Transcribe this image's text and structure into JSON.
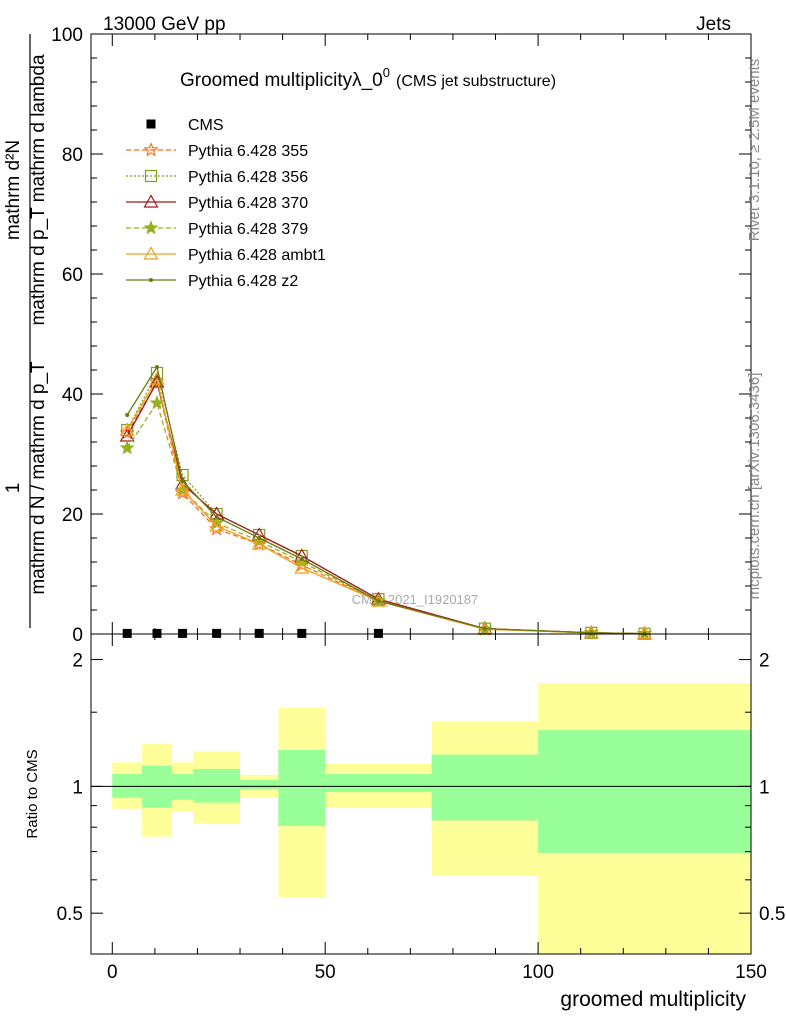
{
  "header": {
    "left": "13000 GeV pp",
    "right": "Jets"
  },
  "side_text": {
    "rivet": "Rivet 3.1.10, ≥ 2.5M events",
    "mcplots": "mcplots.cern.ch [arXiv:1306.3436]"
  },
  "watermark": "CMS_2021_I1920187",
  "chart_data": [
    {
      "type": "line",
      "title_main": "Groomed multiplicityλ_0",
      "title_sup": "0",
      "title_sub": "(CMS jet substructure)",
      "ylabel_top": "1",
      "ylabel_upper": "mathrm d²N",
      "ylabel_upper2": "mathrm d p_T mathrm d lambda",
      "ylabel_lower": "mathrm d N / mathrm d p_T",
      "xlabel": "groomed multiplicity",
      "xlim": [
        -5,
        150
      ],
      "ylim": [
        0,
        100
      ],
      "yticks": [
        "0",
        "20",
        "40",
        "60",
        "80",
        "100"
      ],
      "x": [
        3.5,
        10.5,
        16.5,
        24.5,
        34.5,
        44.5,
        62.5,
        87.5,
        112.5,
        125
      ],
      "series": [
        {
          "name": "CMS",
          "color": "#000000",
          "marker": "square",
          "dash": "",
          "x": [
            3.5,
            10.5,
            16.5,
            24.5,
            34.5,
            44.5,
            62.5
          ],
          "values": [
            0.1,
            0.1,
            0.1,
            0.1,
            0.1,
            0.1,
            0.1
          ]
        },
        {
          "name": "Pythia 6.428 355",
          "color": "#ff6a1a",
          "marker": "star-open",
          "dash": "5,3",
          "values": [
            33.5,
            42.0,
            23.5,
            17.5,
            15.0,
            11.5,
            5.5,
            0.8,
            0.2,
            0.05
          ]
        },
        {
          "name": "Pythia 6.428 356",
          "color": "#7f9f1f",
          "marker": "square-open",
          "dash": "2,2",
          "values": [
            34.0,
            43.5,
            26.5,
            20.0,
            16.5,
            13.0,
            5.8,
            0.9,
            0.2,
            0.05
          ]
        },
        {
          "name": "Pythia 6.428 370",
          "color": "#9b1b1b",
          "marker": "triangle-open",
          "dash": "",
          "values": [
            33.0,
            42.0,
            25.0,
            20.0,
            16.5,
            13.0,
            5.8,
            0.9,
            0.2,
            0.05
          ]
        },
        {
          "name": "Pythia 6.428 379",
          "color": "#9aaf20",
          "marker": "star",
          "dash": "5,3",
          "values": [
            31.0,
            38.5,
            24.0,
            18.5,
            15.5,
            12.0,
            5.5,
            0.8,
            0.2,
            0.05
          ]
        },
        {
          "name": "Pythia 6.428 ambt1",
          "color": "#f0a020",
          "marker": "triangle-open",
          "dash": "",
          "values": [
            34.0,
            42.5,
            24.0,
            18.0,
            15.0,
            11.0,
            5.5,
            0.8,
            0.2,
            0.05
          ]
        },
        {
          "name": "Pythia 6.428 z2",
          "color": "#6b7a10",
          "marker": "dot",
          "dash": "",
          "values": [
            36.5,
            44.5,
            25.5,
            19.5,
            16.0,
            12.5,
            5.5,
            0.9,
            0.2,
            0.05
          ]
        }
      ]
    },
    {
      "type": "area",
      "ylabel": "Ratio to CMS",
      "xlabel": "groomed multiplicity",
      "xlim": [
        -5,
        150
      ],
      "ylim": [
        0.4,
        2.3
      ],
      "log_y": true,
      "xticks": [
        "0",
        "50",
        "100",
        "150"
      ],
      "yticks": [
        "0.5",
        "1",
        "2"
      ],
      "bins": [
        {
          "lo": 0,
          "hi": 7,
          "stat": [
            0.94,
            1.07
          ],
          "total": [
            0.885,
            1.14
          ]
        },
        {
          "lo": 7,
          "hi": 14,
          "stat": [
            0.89,
            1.12
          ],
          "total": [
            0.76,
            1.26
          ]
        },
        {
          "lo": 14,
          "hi": 19,
          "stat": [
            0.93,
            1.07
          ],
          "total": [
            0.87,
            1.14
          ]
        },
        {
          "lo": 19,
          "hi": 30,
          "stat": [
            0.915,
            1.1
          ],
          "total": [
            0.815,
            1.21
          ]
        },
        {
          "lo": 30,
          "hi": 39,
          "stat": [
            0.985,
            1.035
          ],
          "total": [
            0.94,
            1.065
          ]
        },
        {
          "lo": 39,
          "hi": 50,
          "stat": [
            0.805,
            1.22
          ],
          "total": [
            0.545,
            1.54
          ]
        },
        {
          "lo": 50,
          "hi": 75,
          "stat": [
            0.97,
            1.07
          ],
          "total": [
            0.89,
            1.13
          ]
        },
        {
          "lo": 75,
          "hi": 100,
          "stat": [
            0.83,
            1.19
          ],
          "total": [
            0.615,
            1.43
          ]
        },
        {
          "lo": 100,
          "hi": 150,
          "stat": [
            0.695,
            1.36
          ],
          "total": [
            0.33,
            1.76
          ]
        }
      ],
      "colors": {
        "stat": "#99ff99",
        "total": "#ffff99",
        "ref": "#000000"
      }
    }
  ]
}
